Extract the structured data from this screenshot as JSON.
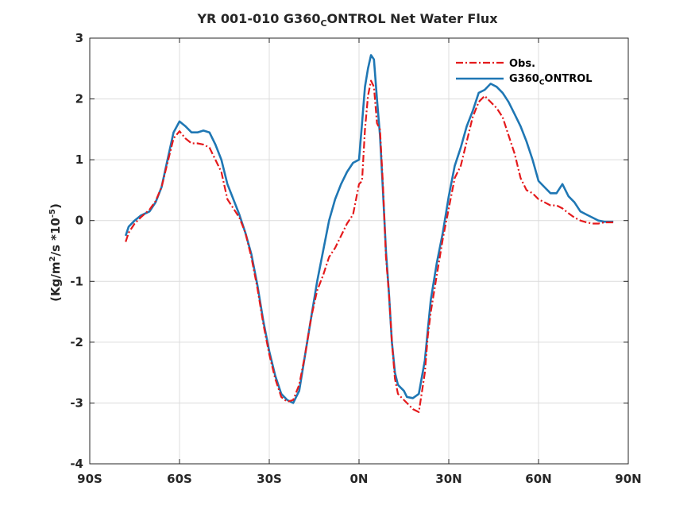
{
  "chart_data": {
    "type": "line",
    "title": {
      "main": "YR 001-010 G360",
      "sub": "C",
      "rest": "ONTROL  Net Water Flux"
    },
    "ylabel": {
      "before": "(Kg/m",
      "sup1": "2",
      "mid": "/s *10",
      "sup2": "-5",
      "after": ")"
    },
    "xlabel": "",
    "xlim": [
      -90,
      90
    ],
    "ylim": [
      -4,
      3
    ],
    "xticks": [
      -90,
      -60,
      -30,
      0,
      30,
      60,
      90
    ],
    "xtick_labels": [
      "90S",
      "60S",
      "30S",
      "0N",
      "30N",
      "60N",
      "90N"
    ],
    "yticks": [
      -4,
      -3,
      -2,
      -1,
      0,
      1,
      2,
      3
    ],
    "ytick_labels": [
      "-4",
      "-3",
      "-2",
      "-1",
      "0",
      "1",
      "2",
      "3"
    ],
    "grid": true,
    "legend_position": "top-right",
    "series": [
      {
        "name": "Obs.",
        "legend": {
          "main": "Obs.",
          "sub": "",
          "rest": ""
        },
        "color": "#e41a1c",
        "style": "dashdot",
        "x": [
          -78,
          -77,
          -75,
          -73,
          -70,
          -68,
          -66,
          -64,
          -62,
          -60,
          -58,
          -56,
          -54,
          -52,
          -50,
          -48,
          -46,
          -44,
          -42,
          -40,
          -38,
          -36,
          -34,
          -32,
          -30,
          -28,
          -26,
          -24,
          -22,
          -20,
          -18,
          -16,
          -14,
          -12,
          -10,
          -8,
          -6,
          -4,
          -2,
          0,
          1,
          2,
          3,
          4,
          5,
          6,
          7,
          8,
          9,
          10,
          11,
          12,
          13,
          14,
          15,
          16,
          18,
          20,
          22,
          23,
          24,
          26,
          28,
          30,
          32,
          34,
          36,
          38,
          40,
          42,
          44,
          46,
          48,
          50,
          52,
          54,
          56,
          58,
          60,
          62,
          64,
          66,
          68,
          70,
          72,
          74,
          76,
          78,
          80,
          82,
          84,
          85
        ],
        "y": [
          -0.35,
          -0.2,
          -0.05,
          0.05,
          0.18,
          0.32,
          0.55,
          0.95,
          1.35,
          1.47,
          1.35,
          1.27,
          1.27,
          1.25,
          1.2,
          1.0,
          0.8,
          0.35,
          0.2,
          0.05,
          -0.2,
          -0.6,
          -1.1,
          -1.7,
          -2.2,
          -2.6,
          -2.9,
          -2.98,
          -2.95,
          -2.7,
          -2.2,
          -1.6,
          -1.15,
          -0.9,
          -0.6,
          -0.45,
          -0.25,
          -0.05,
          0.1,
          0.6,
          0.65,
          1.5,
          2.05,
          2.3,
          2.2,
          1.6,
          1.5,
          0.6,
          -0.6,
          -1.2,
          -2.0,
          -2.6,
          -2.85,
          -2.9,
          -2.95,
          -3.0,
          -3.1,
          -3.15,
          -2.5,
          -1.9,
          -1.5,
          -0.9,
          -0.3,
          0.2,
          0.7,
          0.9,
          1.3,
          1.7,
          1.95,
          2.05,
          1.95,
          1.85,
          1.7,
          1.4,
          1.1,
          0.7,
          0.5,
          0.45,
          0.35,
          0.3,
          0.25,
          0.25,
          0.2,
          0.12,
          0.05,
          0.0,
          -0.03,
          -0.05,
          -0.05,
          -0.03,
          -0.03,
          -0.03
        ]
      },
      {
        "name": "G360CONTROL",
        "legend": {
          "main": "G360",
          "sub": "C",
          "rest": "ONTROL"
        },
        "color": "#1f77b4",
        "style": "solid",
        "x": [
          -78,
          -77,
          -75,
          -73,
          -70,
          -68,
          -66,
          -64,
          -62,
          -60,
          -58,
          -56,
          -54,
          -52,
          -50,
          -48,
          -46,
          -44,
          -42,
          -40,
          -38,
          -36,
          -34,
          -32,
          -30,
          -28,
          -26,
          -24,
          -22,
          -20,
          -18,
          -16,
          -14,
          -12,
          -10,
          -8,
          -6,
          -4,
          -2,
          0,
          1,
          2,
          3,
          4,
          5,
          6,
          7,
          8,
          9,
          10,
          11,
          12,
          13,
          14,
          15,
          16,
          18,
          20,
          22,
          23,
          24,
          26,
          28,
          30,
          32,
          34,
          36,
          38,
          40,
          42,
          44,
          46,
          48,
          50,
          52,
          54,
          56,
          58,
          60,
          62,
          64,
          66,
          68,
          70,
          72,
          74,
          76,
          78,
          80,
          82,
          84,
          85
        ],
        "y": [
          -0.25,
          -0.1,
          0.0,
          0.08,
          0.15,
          0.3,
          0.55,
          1.0,
          1.45,
          1.63,
          1.55,
          1.45,
          1.45,
          1.48,
          1.45,
          1.25,
          1.0,
          0.6,
          0.35,
          0.1,
          -0.2,
          -0.55,
          -1.05,
          -1.65,
          -2.15,
          -2.55,
          -2.85,
          -2.95,
          -3.0,
          -2.8,
          -2.2,
          -1.6,
          -1.0,
          -0.5,
          0.0,
          0.35,
          0.6,
          0.8,
          0.95,
          1.0,
          1.6,
          2.2,
          2.5,
          2.72,
          2.65,
          2.0,
          1.4,
          0.5,
          -0.5,
          -1.2,
          -2.0,
          -2.5,
          -2.7,
          -2.75,
          -2.8,
          -2.9,
          -2.92,
          -2.85,
          -2.3,
          -1.8,
          -1.3,
          -0.7,
          -0.2,
          0.4,
          0.9,
          1.2,
          1.55,
          1.8,
          2.1,
          2.15,
          2.25,
          2.2,
          2.1,
          1.95,
          1.75,
          1.55,
          1.3,
          1.0,
          0.65,
          0.55,
          0.45,
          0.45,
          0.6,
          0.4,
          0.3,
          0.15,
          0.1,
          0.05,
          0.0,
          -0.02,
          -0.02,
          -0.02
        ]
      }
    ]
  }
}
